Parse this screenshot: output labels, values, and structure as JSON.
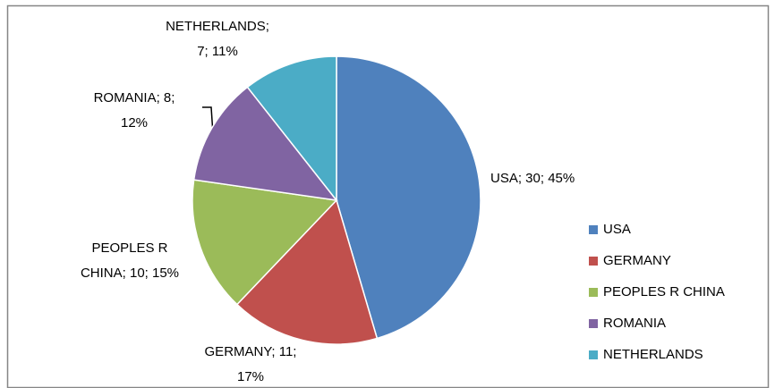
{
  "chart_data": {
    "type": "pie",
    "categories": [
      "USA",
      "GERMANY",
      "PEOPLES R CHINA",
      "ROMANIA",
      "NETHERLANDS"
    ],
    "values": [
      30,
      11,
      10,
      8,
      7
    ],
    "value_labels": [
      "USA; 30; 45%",
      "GERMANY; 11;\n17%",
      "PEOPLES R\nCHINA; 10; 15%",
      "ROMANIA; 8;\n12%",
      "NETHERLANDS;\n7; 11%"
    ],
    "colors": [
      "#4f81bd",
      "#c0504d",
      "#9bbb59",
      "#8064a2",
      "#4bacc6"
    ],
    "legend": "right"
  }
}
